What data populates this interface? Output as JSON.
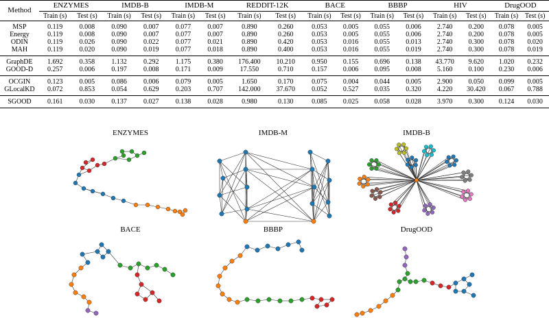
{
  "table": {
    "method_header": "Method",
    "train_label": "Train (s)",
    "test_label": "Test (s)",
    "datasets": [
      "ENZYMES",
      "IMDB-B",
      "IMDB-M",
      "REDDIT-12K",
      "BACE",
      "BBBP",
      "HIV",
      "DrugOOD"
    ],
    "groups": [
      [
        {
          "method": "MSP",
          "values": [
            "0.119",
            "0.008",
            "0.090",
            "0.007",
            "0.077",
            "0.007",
            "0.890",
            "0.260",
            "0.053",
            "0.005",
            "0.055",
            "0.006",
            "2.740",
            "0.200",
            "0.078",
            "0.005"
          ]
        },
        {
          "method": "Energy",
          "values": [
            "0.119",
            "0.008",
            "0.090",
            "0.007",
            "0.077",
            "0.007",
            "0.890",
            "0.260",
            "0.053",
            "0.005",
            "0.055",
            "0.006",
            "2.740",
            "0.200",
            "0.078",
            "0.005"
          ]
        },
        {
          "method": "ODIN",
          "values": [
            "0.119",
            "0.026",
            "0.090",
            "0.022",
            "0.077",
            "0.021",
            "0.890",
            "0.420",
            "0.053",
            "0.016",
            "0.055",
            "0.013",
            "2.740",
            "0.300",
            "0.078",
            "0.020"
          ]
        },
        {
          "method": "MAH",
          "values": [
            "0.119",
            "0.020",
            "0.090",
            "0.019",
            "0.077",
            "0.018",
            "0.890",
            "0.400",
            "0.053",
            "0.016",
            "0.055",
            "0.019",
            "2.740",
            "0.300",
            "0.078",
            "0.019"
          ]
        }
      ],
      [
        {
          "method": "GraphDE",
          "values": [
            "1.692",
            "0.358",
            "1.132",
            "0.292",
            "1.175",
            "0.380",
            "176.400",
            "10.210",
            "0.950",
            "0.155",
            "0.696",
            "0.138",
            "43.770",
            "9.620",
            "1.020",
            "0.232"
          ]
        },
        {
          "method": "GOOD-D",
          "values": [
            "0.257",
            "0.006",
            "0.197",
            "0.008",
            "0.171",
            "0.009",
            "17.550",
            "0.710",
            "0.157",
            "0.006",
            "0.095",
            "0.008",
            "5.160",
            "0.100",
            "0.230",
            "0.006"
          ]
        }
      ],
      [
        {
          "method": "OCGIN",
          "values": [
            "0.123",
            "0.005",
            "0.086",
            "0.006",
            "0.079",
            "0.005",
            "1.650",
            "0.170",
            "0.075",
            "0.004",
            "0.044",
            "0.005",
            "2.900",
            "0.050",
            "0.099",
            "0.005"
          ]
        },
        {
          "method": "GLocalKD",
          "values": [
            "0.072",
            "0.853",
            "0.054",
            "0.629",
            "0.203",
            "0.707",
            "142.000",
            "37.670",
            "0.052",
            "0.527",
            "0.035",
            "0.320",
            "4.220",
            "30.420",
            "0.067",
            "0.788"
          ]
        }
      ],
      [
        {
          "method": "SGOOD",
          "values": [
            "0.161",
            "0.030",
            "0.137",
            "0.027",
            "0.138",
            "0.028",
            "0.980",
            "0.130",
            "0.085",
            "0.025",
            "0.058",
            "0.028",
            "3.970",
            "0.300",
            "0.124",
            "0.030"
          ]
        }
      ]
    ]
  },
  "graphs": {
    "titles": [
      "ENZYMES",
      "IMDB-M",
      "IMDB-B",
      "BACE",
      "BBBP",
      "DrugOOD"
    ],
    "colors": {
      "red": "#d62728",
      "blue": "#1f77b4",
      "green": "#2ca02c",
      "orange": "#ff7f0e",
      "purple": "#9467bd",
      "yellow": "#bcbd22",
      "cyan": "#17becf",
      "gray": "#7f7f7f",
      "pink": "#e377c2",
      "brown": "#8c564b"
    }
  }
}
